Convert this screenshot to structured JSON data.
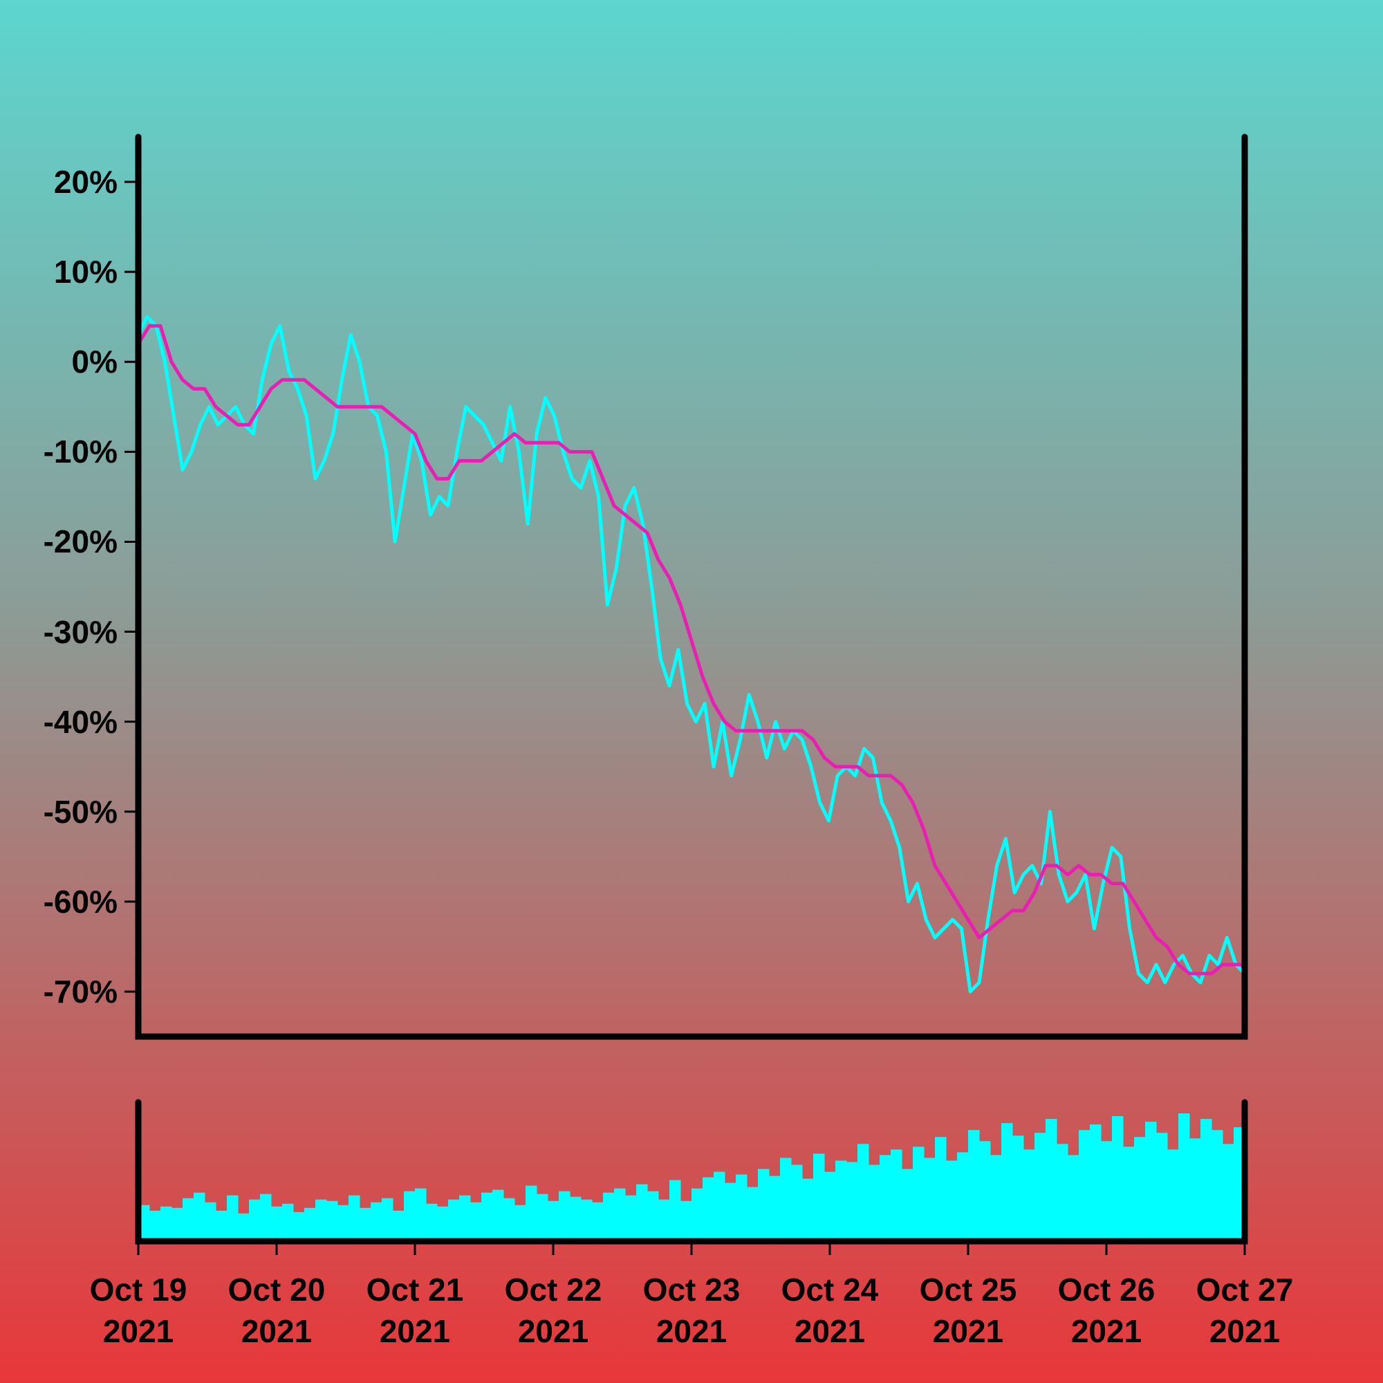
{
  "chart_data": [
    {
      "type": "line",
      "xlim": [
        "2021-10-19",
        "2021-10-27"
      ],
      "ylim": [
        -75,
        25
      ],
      "yticks": [
        {
          "value": 20,
          "label": "20%"
        },
        {
          "value": 10,
          "label": "10%"
        },
        {
          "value": 0,
          "label": "0%"
        },
        {
          "value": -10,
          "label": "-10%"
        },
        {
          "value": -20,
          "label": "-20%"
        },
        {
          "value": -30,
          "label": "-30%"
        },
        {
          "value": -40,
          "label": "-40%"
        },
        {
          "value": -50,
          "label": "-50%"
        },
        {
          "value": -60,
          "label": "-60%"
        },
        {
          "value": -70,
          "label": "-70%"
        }
      ],
      "series": [
        {
          "color": "#00ffff",
          "values": [
            3,
            5,
            4,
            0,
            -6,
            -12,
            -10,
            -7,
            -5,
            -7,
            -6,
            -5,
            -7,
            -8,
            -2,
            2,
            4,
            -1,
            -3,
            -6,
            -13,
            -11,
            -8,
            -2,
            3,
            0,
            -5,
            -6,
            -10,
            -20,
            -14,
            -8,
            -11,
            -17,
            -15,
            -16,
            -10,
            -5,
            -6,
            -7,
            -9,
            -11,
            -5,
            -10,
            -18,
            -8,
            -4,
            -6,
            -10,
            -13,
            -14,
            -11,
            -15,
            -27,
            -23,
            -16,
            -14,
            -18,
            -25,
            -33,
            -36,
            -32,
            -38,
            -40,
            -38,
            -45,
            -40,
            -46,
            -42,
            -37,
            -40,
            -44,
            -40,
            -43,
            -41,
            -42,
            -45,
            -49,
            -51,
            -46,
            -45,
            -46,
            -43,
            -44,
            -49,
            -51,
            -54,
            -60,
            -58,
            -62,
            -64,
            -63,
            -62,
            -63,
            -70,
            -69,
            -62,
            -56,
            -53,
            -59,
            -57,
            -56,
            -58,
            -50,
            -57,
            -60,
            -59,
            -57,
            -63,
            -58,
            -54,
            -55,
            -63,
            -68,
            -69,
            -67,
            -69,
            -67,
            -66,
            -68,
            -69,
            -66,
            -67,
            -64,
            -67,
            -68
          ]
        },
        {
          "color": "#e91fb4",
          "values": [
            2,
            4,
            4,
            0,
            -2,
            -3,
            -3,
            -5,
            -6,
            -7,
            -7,
            -5,
            -3,
            -2,
            -2,
            -2,
            -3,
            -4,
            -5,
            -5,
            -5,
            -5,
            -5,
            -6,
            -7,
            -8,
            -11,
            -13,
            -13,
            -11,
            -11,
            -11,
            -10,
            -9,
            -8,
            -9,
            -9,
            -9,
            -9,
            -10,
            -10,
            -10,
            -13,
            -16,
            -17,
            -18,
            -19,
            -22,
            -24,
            -27,
            -31,
            -35,
            -38,
            -40,
            -41,
            -41,
            -41,
            -41,
            -41,
            -41,
            -41,
            -42,
            -44,
            -45,
            -45,
            -45,
            -46,
            -46,
            -46,
            -47,
            -49,
            -52,
            -56,
            -58,
            -60,
            -62,
            -64,
            -63,
            -62,
            -61,
            -61,
            -59,
            -56,
            -56,
            -57,
            -56,
            -57,
            -57,
            -58,
            -58,
            -60,
            -62,
            -64,
            -65,
            -67,
            -68,
            -68,
            -68,
            -67,
            -67,
            -67
          ]
        }
      ]
    },
    {
      "type": "bar",
      "xlim": [
        "2021-10-19",
        "2021-10-27"
      ],
      "ylim": [
        0,
        100
      ],
      "color": "#00ffff",
      "xticks": [
        {
          "value": "2021-10-19",
          "label": "Oct 19\n2021"
        },
        {
          "value": "2021-10-20",
          "label": "Oct 20\n2021"
        },
        {
          "value": "2021-10-21",
          "label": "Oct 21\n2021"
        },
        {
          "value": "2021-10-22",
          "label": "Oct 22\n2021"
        },
        {
          "value": "2021-10-23",
          "label": "Oct 23\n2021"
        },
        {
          "value": "2021-10-24",
          "label": "Oct 24\n2021"
        },
        {
          "value": "2021-10-25",
          "label": "Oct 25\n2021"
        },
        {
          "value": "2021-10-26",
          "label": "Oct 26\n2021"
        },
        {
          "value": "2021-10-27",
          "label": "Oct 27\n2021"
        }
      ],
      "values": [
        26,
        22,
        25,
        24,
        31,
        35,
        28,
        22,
        33,
        20,
        30,
        34,
        25,
        27,
        21,
        24,
        30,
        29,
        26,
        33,
        24,
        28,
        31,
        22,
        36,
        38,
        27,
        25,
        30,
        33,
        28,
        35,
        37,
        31,
        26,
        40,
        34,
        29,
        36,
        32,
        30,
        28,
        35,
        38,
        33,
        41,
        36,
        30,
        44,
        29,
        38,
        46,
        50,
        42,
        48,
        39,
        52,
        47,
        60,
        55,
        45,
        63,
        50,
        58,
        57,
        70,
        55,
        62,
        66,
        52,
        68,
        60,
        75,
        58,
        64,
        80,
        72,
        62,
        85,
        76,
        66,
        78,
        88,
        70,
        62,
        80,
        84,
        72,
        90,
        68,
        75,
        86,
        78,
        66,
        92,
        74,
        88,
        80,
        70,
        82
      ]
    }
  ]
}
